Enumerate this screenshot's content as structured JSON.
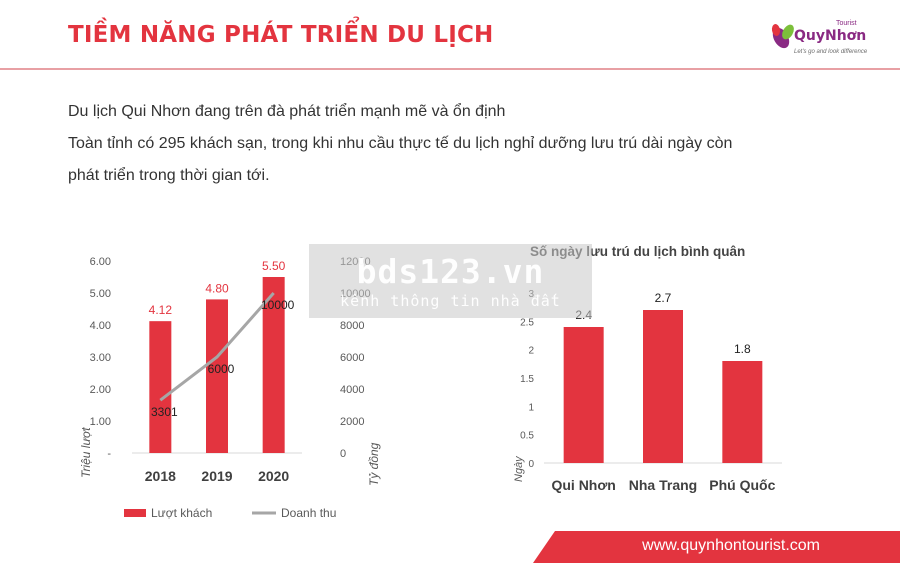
{
  "header": {
    "title": "TIỀM NĂNG PHÁT TRIỂN DU LỊCH",
    "logo_name": "QuyNhơn",
    "logo_sup": "Tourist",
    "logo_tagline": "Let's go and look difference"
  },
  "intro": {
    "line1": "Du lịch Qui Nhơn đang trên đà phát triển mạnh mẽ và ổn định",
    "line2": "Toàn tỉnh có 295 khách sạn, trong khi nhu cầu thực tế du lịch nghỉ dưỡng lưu trú dài ngày còn",
    "line3": "phát triển trong thời gian tới."
  },
  "watermark": {
    "main": "bds123.vn",
    "sub": "kênh thông tin nhà đất"
  },
  "footer": {
    "url": "www.quynhontourist.com"
  },
  "colors": {
    "accent": "#e3343f",
    "bar": "#e3343f",
    "line": "#a6a6a6",
    "logo": "#8a2a83"
  },
  "chart_data": [
    {
      "type": "bar",
      "title": "",
      "categories": [
        "2018",
        "2019",
        "2020"
      ],
      "series": [
        {
          "name": "Lượt khách",
          "axis": "left",
          "type": "bar",
          "values": [
            4.12,
            4.8,
            5.5
          ],
          "labels": [
            "4.12",
            "4.80",
            "5.50"
          ]
        },
        {
          "name": "Doanh thu",
          "axis": "right",
          "type": "line",
          "values": [
            3301,
            6000,
            10000
          ],
          "labels": [
            "3301",
            "6000",
            "10000"
          ]
        }
      ],
      "ylabel": "Triệu lượt",
      "y2label": "Tỷ đồng",
      "ylim": [
        0,
        6
      ],
      "y2lim": [
        0,
        12000
      ],
      "yticks": [
        "-",
        "1.00",
        "2.00",
        "3.00",
        "4.00",
        "5.00",
        "6.00"
      ],
      "y2ticks": [
        "0",
        "2000",
        "4000",
        "6000",
        "8000",
        "10000",
        "12000"
      ],
      "legend": "bottom",
      "grid": false
    },
    {
      "type": "bar",
      "title": "Số ngày lưu trú du lịch bình quân",
      "categories": [
        "Qui Nhơn",
        "Nha Trang",
        "Phú Quốc"
      ],
      "values": [
        2.4,
        2.7,
        1.8
      ],
      "labels": [
        "2.4",
        "2.7",
        "1.8"
      ],
      "ylabel": "Ngày",
      "ylim": [
        0,
        3
      ],
      "yticks": [
        "0",
        "0.5",
        "1",
        "1.5",
        "2",
        "2.5",
        "3"
      ],
      "grid": false
    }
  ]
}
